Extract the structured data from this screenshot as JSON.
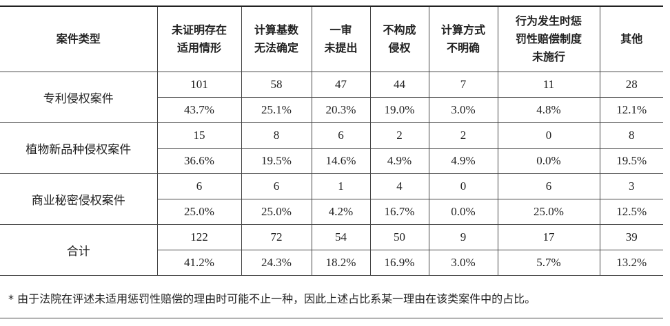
{
  "table": {
    "header": [
      [
        "案件类型"
      ],
      [
        "未证明存在",
        "适用情形"
      ],
      [
        "计算基数",
        "无法确定"
      ],
      [
        "一审",
        "未提出"
      ],
      [
        "不构成",
        "侵权"
      ],
      [
        "计算方式",
        "不明确"
      ],
      [
        "行为发生时惩",
        "罚性赔偿制度",
        "未施行"
      ],
      [
        "其他"
      ]
    ],
    "rows": [
      {
        "type": "专利侵权案件",
        "counts": [
          101,
          58,
          47,
          44,
          7,
          11,
          28
        ],
        "percents": [
          "43.7%",
          "25.1%",
          "20.3%",
          "19.0%",
          "3.0%",
          "4.8%",
          "12.1%"
        ]
      },
      {
        "type": "植物新品种侵权案件",
        "counts": [
          15,
          8,
          6,
          2,
          2,
          0,
          8
        ],
        "percents": [
          "36.6%",
          "19.5%",
          "14.6%",
          "4.9%",
          "4.9%",
          "0.0%",
          "19.5%"
        ]
      },
      {
        "type": "商业秘密侵权案件",
        "counts": [
          6,
          6,
          1,
          4,
          0,
          6,
          3
        ],
        "percents": [
          "25.0%",
          "25.0%",
          "4.2%",
          "16.7%",
          "0.0%",
          "25.0%",
          "12.5%"
        ]
      },
      {
        "type": "合计",
        "counts": [
          122,
          72,
          54,
          50,
          9,
          17,
          39
        ],
        "percents": [
          "41.2%",
          "24.3%",
          "18.2%",
          "16.9%",
          "3.0%",
          "5.7%",
          "13.2%"
        ]
      }
    ]
  },
  "footnote": "* 由于法院在评述未适用惩罚性赔偿的理由时可能不止一种，因此上述占比系某一理由在该类案件中的占比。"
}
